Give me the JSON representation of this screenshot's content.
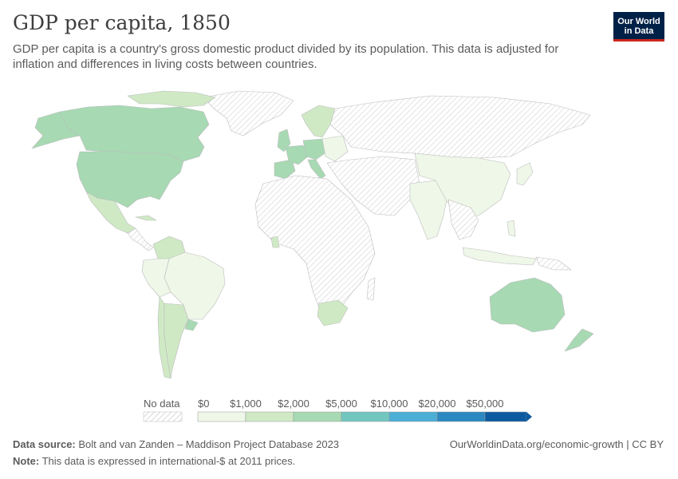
{
  "title": "GDP per capita, 1850",
  "subtitle": "GDP per capita is a country's gross domestic product divided by its population. This data is adjusted for inflation and differences in living costs between countries.",
  "logo": {
    "line1": "Our World",
    "line2": "in Data"
  },
  "legend": {
    "no_data_label": "No data",
    "bins": [
      {
        "label": "$0",
        "color": "#eef7e8"
      },
      {
        "label": "$1,000",
        "color": "#cfe9c5"
      },
      {
        "label": "$2,000",
        "color": "#a7d9b3"
      },
      {
        "label": "$5,000",
        "color": "#72c6c0"
      },
      {
        "label": "$10,000",
        "color": "#4baed6"
      },
      {
        "label": "$20,000",
        "color": "#2b88c0"
      },
      {
        "label": "$50,000",
        "color": "#0d5aa0"
      }
    ]
  },
  "colors": {
    "no_data_hatch": "#d9d9d9",
    "border": "#bdbdbd",
    "tier_0_1000": "#eef7e8",
    "tier_1000_2000": "#cfe9c5",
    "tier_2000_5000": "#a7d9b3"
  },
  "footer": {
    "source_label": "Data source:",
    "source_text": "Bolt and van Zanden – Maddison Project Database 2023",
    "note_label": "Note:",
    "note_text": "This data is expressed in international-$ at 2011 prices.",
    "right_text": "OurWorldinData.org/economic-growth | CC BY"
  }
}
